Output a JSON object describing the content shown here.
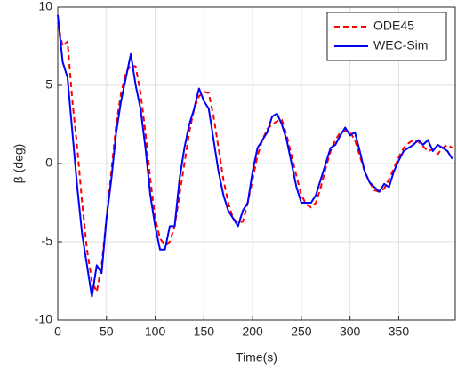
{
  "chart_data": {
    "type": "line",
    "xlabel": "Time(s)",
    "ylabel": "β (deg)",
    "x": [
      0,
      5,
      10,
      15,
      20,
      25,
      30,
      35,
      40,
      45,
      50,
      55,
      60,
      65,
      70,
      75,
      80,
      85,
      90,
      95,
      100,
      105,
      110,
      115,
      120,
      125,
      130,
      135,
      140,
      145,
      150,
      155,
      160,
      165,
      170,
      175,
      180,
      185,
      190,
      195,
      200,
      205,
      210,
      215,
      220,
      225,
      230,
      235,
      240,
      245,
      250,
      255,
      260,
      265,
      270,
      275,
      280,
      285,
      290,
      295,
      300,
      305,
      310,
      315,
      320,
      325,
      330,
      335,
      340,
      345,
      350,
      355,
      360,
      365,
      370,
      375,
      380,
      385,
      390,
      395,
      400,
      405
    ],
    "series": [
      {
        "name": "ODE45",
        "color": "#ff0000",
        "linestyle": "dashed",
        "values": [
          9,
          7.5,
          7.8,
          4,
          1,
          -2.5,
          -5.5,
          -7.5,
          -8.2,
          -6.5,
          -3.5,
          -0.5,
          2.5,
          4.5,
          5.8,
          6.3,
          6.2,
          4.5,
          2,
          -1,
          -3.5,
          -4.8,
          -5.2,
          -5,
          -4,
          -2,
          0,
          2,
          3.5,
          4.3,
          4.6,
          4.5,
          3,
          1,
          -1,
          -2.5,
          -3.5,
          -3.8,
          -3.7,
          -2.5,
          -1,
          0.5,
          1.5,
          2.2,
          2.5,
          2.7,
          2.8,
          1.8,
          0.5,
          -0.8,
          -2,
          -2.6,
          -2.8,
          -2.5,
          -1.5,
          -0.3,
          0.8,
          1.5,
          2,
          2.1,
          2,
          1.5,
          0.5,
          -0.5,
          -1.2,
          -1.7,
          -1.8,
          -1.6,
          -1,
          -0.3,
          0.4,
          1,
          1.3,
          1.5,
          1.4,
          1.1,
          0.8,
          0.9,
          0.6,
          1,
          1.2,
          1
        ]
      },
      {
        "name": "WEC-Sim",
        "color": "#0000ff",
        "linestyle": "solid",
        "values": [
          9.5,
          6.5,
          5.5,
          2,
          -1.5,
          -4.5,
          -6.5,
          -8.5,
          -6.5,
          -7,
          -3.5,
          -1,
          2,
          4,
          5.5,
          7,
          5,
          3.5,
          1,
          -2,
          -4,
          -5.5,
          -5.5,
          -4,
          -4,
          -1,
          1,
          2.5,
          3.5,
          4.8,
          4,
          3.5,
          1.5,
          -0.5,
          -2,
          -3,
          -3.5,
          -4,
          -3,
          -2.5,
          -0.5,
          1,
          1.5,
          2,
          3,
          3.2,
          2.5,
          1.5,
          0,
          -1.5,
          -2.5,
          -2.5,
          -2.5,
          -2,
          -1,
          0,
          1,
          1.2,
          1.8,
          2.3,
          1.8,
          2,
          0.8,
          -0.5,
          -1.2,
          -1.5,
          -1.8,
          -1.3,
          -1.5,
          -0.5,
          0.2,
          0.8,
          1,
          1.2,
          1.5,
          1.2,
          1.5,
          0.8,
          1.2,
          1,
          0.8,
          0.3
        ]
      }
    ],
    "xlim": [
      0,
      408
    ],
    "xticks": [
      0,
      50,
      100,
      150,
      200,
      250,
      300,
      350
    ],
    "ylim": [
      -10,
      10
    ],
    "yticks": [
      -10,
      -5,
      0,
      5,
      10
    ],
    "grid": true,
    "legend": "upper-right"
  }
}
